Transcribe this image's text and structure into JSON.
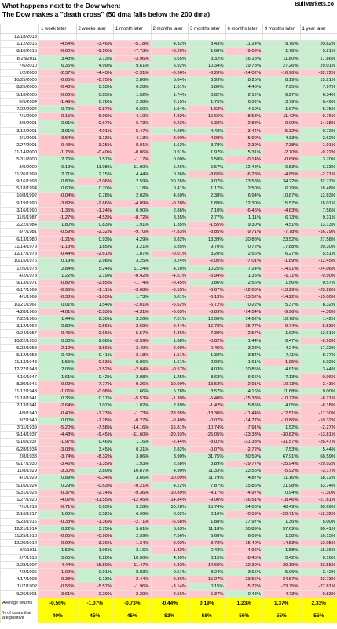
{
  "header": {
    "title_line1": "What happens next to the Dow when:",
    "title_line2": "The Dow makes a \"death cross\" (50 dma falls below the 200 dma)",
    "brand": "BullMarkets.co"
  },
  "chart_data": {
    "type": "table",
    "columns": [
      "",
      "1 week later",
      "2 weeks later",
      "1 month later",
      "2 months later",
      "3 months later",
      "6 months later",
      "9 months later",
      "1 year later"
    ],
    "rows": [
      [
        "12/18/2018",
        "",
        "",
        "",
        "",
        "",
        "",
        "",
        ""
      ],
      [
        "1/12/2016",
        "-4.54%",
        "-3.46%",
        "-5.18%",
        "4.32%",
        "8.43%",
        "11.24%",
        "9.76%",
        "20.82%"
      ],
      [
        "8/10/2015",
        "-0.60%",
        "-9.90%",
        "-7.73%",
        "-3.20%",
        "1.68%",
        "-9.09%",
        "1.78%",
        "5.21%"
      ],
      [
        "8/23/2011",
        "3.43%",
        "2.13%",
        "-3.96%",
        "5.65%",
        "3.32%",
        "16.18%",
        "11.80%",
        "17.86%"
      ],
      [
        "7/6/2010",
        "6.36%",
        "4.99%",
        "9.61%",
        "5.92%",
        "10.34%",
        "19.78%",
        "27.26%",
        "29.01%"
      ],
      [
        "1/2/2008",
        "-2.37%",
        "-4.43%",
        "-2.31%",
        "-6.36%",
        "-3.20%",
        "-14.02%",
        "-16.96%",
        "-32.72%"
      ],
      [
        "10/25/2005",
        "-0.05%",
        "-0.75%",
        "2.86%",
        "5.04%",
        "6.99%",
        "8.25%",
        "8.19%",
        "15.21%"
      ],
      [
        "8/25/2005",
        "-0.48%",
        "0.53%",
        "0.28%",
        "1.61%",
        "5.80%",
        "4.45%",
        "7.95%",
        "7.97%"
      ],
      [
        "5/18/2005",
        "-0.06%",
        "0.85%",
        "1.52%",
        "1.74%",
        "0.82%",
        "2.12%",
        "6.27%",
        "6.34%"
      ],
      [
        "8/5/2004",
        "-1.49%",
        "0.78%",
        "2.98%",
        "2.15%",
        "1.75%",
        "6.32%",
        "3.79%",
        "6.49%"
      ],
      [
        "7/22/2004",
        "0.79%",
        "-0.87%",
        "0.60%",
        "1.94%",
        "-1.63%",
        "4.19%",
        "1.67%",
        "5.75%"
      ],
      [
        "7/1/2002",
        "-0.15%",
        "-6.99%",
        "-4.10%",
        "-4.82%",
        "-16.66%",
        "-8.53%",
        "-11.42%",
        "-0.76%"
      ],
      [
        "8/9/2001",
        "0.91%",
        "-0.67%",
        "-6.73%",
        "-9.23%",
        "-5.32%",
        "-2.88%",
        "-0.09%",
        "-14.38%"
      ],
      [
        "3/12/2001",
        "3.91%",
        "-4.01%",
        "-5.47%",
        "4.29%",
        "4.42%",
        "-3.44%",
        "-5.32%",
        "0.72%"
      ],
      [
        "2/1/2001",
        "-3.54%",
        "-3.13%",
        "-4.13%",
        "-3.90%",
        "-4.98%",
        "-5.90%",
        "4.33%",
        "3.62%"
      ],
      [
        "2/27/2001",
        "-0.43%",
        "-3.25%",
        "-8.01%",
        "1.63%",
        "3.78%",
        "-2.39%",
        "-7.38%",
        "-1.91%"
      ],
      [
        "11/14/2000",
        "-1.75%",
        "-0.49%",
        "-0.06%",
        "0.91%",
        "1.97%",
        "5.31%",
        "-2.70%",
        "-9.22%"
      ],
      [
        "5/31/2000",
        "2.76%",
        "1.57%",
        "-1.17%",
        "0.00%",
        "6.58%",
        "-0.14%",
        "-0.69%",
        "3.70%"
      ],
      [
        "3/9/2000",
        "6.19%",
        "11.08%",
        "11.00%",
        "5.26%",
        "6.57%",
        "12.48%",
        "6.53%",
        "6.33%"
      ],
      [
        "11/26/1999",
        "2.71%",
        "2.15%",
        "4.44%",
        "0.36%",
        "-8.65%",
        "-6.28%",
        "-4.85%",
        "-2.21%"
      ],
      [
        "9/16/1998",
        "0.80%",
        "-3.06%",
        "2.59%",
        "10.26%",
        "9.07%",
        "23.58%",
        "34.22%",
        "32.77%"
      ],
      [
        "5/18/1994",
        "0.60%",
        "0.70%",
        "1.18%",
        "0.41%",
        "1.17%",
        "2.50%",
        "6.79%",
        "18.48%"
      ],
      [
        "10/8/1992",
        "-0.04%",
        "0.78%",
        "2.02%",
        "4.60%",
        "2.38%",
        "6.94%",
        "10.87%",
        "12.83%"
      ],
      [
        "9/19/1990",
        "-3.82%",
        "-2.66%",
        "-4.09%",
        "-0.28%",
        "1.89%",
        "12.30%",
        "15.57%",
        "18.01%"
      ],
      [
        "3/16/1990",
        "-1.35%",
        "-1.24%",
        "0.90%",
        "2.86%",
        "7.10%",
        "-6.46%",
        "-4.63%",
        "7.56%"
      ],
      [
        "11/5/1987",
        "-1.27%",
        "-4.53%",
        "-8.72%",
        "3.35%",
        "2.77%",
        "1.11%",
        "6.73%",
        "9.31%"
      ],
      [
        "2/22/1984",
        "1.80%",
        "0.83%",
        "1.91%",
        "1.35%",
        "-1.55%",
        "9.30%",
        "4.51%",
        "13.13%"
      ],
      [
        "8/7/1981",
        "-0.59%",
        "-2.32%",
        "-9.70%",
        "-7.83%",
        "-8.85%",
        "-9.71%",
        "-7.78%",
        "-16.79%"
      ],
      [
        "6/13/1980",
        "-1.21%",
        "0.93%",
        "4.29%",
        "8.82%",
        "13.39%",
        "20.88%",
        "23.52%",
        "27.58%"
      ],
      [
        "11/14/1979",
        "-1.13%",
        "1.85%",
        "3.21%",
        "5.95%",
        "9.70%",
        "0.72%",
        "17.88%",
        "20.30%"
      ],
      [
        "12/17/1978",
        "-0.44%",
        "-2.61%",
        "1.87%",
        "-0.01%",
        "3.28%",
        "2.56%",
        "6.27%",
        "5.51%"
      ],
      [
        "10/15/1976",
        "0.19%",
        "2.98%",
        "3.25%",
        "0.24%",
        "-2.05%",
        "-7.01%",
        "-1.89%",
        "-12.45%"
      ],
      [
        "12/5/1973",
        "2.84%",
        "5.24%",
        "11.24%",
        "4.10%",
        "10.25%",
        "7.24%",
        "-14.91%",
        "-24.06%"
      ],
      [
        "4/2/1973",
        "1.22%",
        "2.19%",
        "-0.42%",
        "-4.51%",
        "-5.94%",
        "1.35%",
        "-9.11%",
        "-9.90%"
      ],
      [
        "9/13/1971",
        "-0.82%",
        "-2.85%",
        "-1.74%",
        "-0.45%",
        "0.86%",
        "2.56%",
        "1.56%",
        "0.57%"
      ],
      [
        "6/17/1969",
        "-0.96%",
        "-1.11%",
        "-3.68%",
        "-6.55%",
        "-6.67%",
        "-12.63%",
        "-13.29%",
        "-20.26%"
      ],
      [
        "4/1/1969",
        "-0.33%",
        "-1.03%",
        "1.73%",
        "0.01%",
        "-6.13%",
        "-13.52%",
        "-14.22%",
        "-15.00%"
      ],
      [
        "10/21/1967",
        "0.01%",
        "1.54%",
        "-2.01%",
        "-5.62%",
        "-5.72%",
        "0.22%",
        "5.37%",
        "8.32%"
      ],
      [
        "4/28/1966",
        "-4.01%",
        "-5.53%",
        "-4.31%",
        "-6.03%",
        "-8.89%",
        "-14.54%",
        "-9.96%",
        "-4.30%"
      ],
      [
        "7/22/1965",
        "1.44%",
        "2.30%",
        "3.26%",
        "7.51%",
        "10.06%",
        "14.62%",
        "10.78%",
        "1.42%"
      ],
      [
        "3/12/1962",
        "0.80%",
        "-0.56%",
        "-2.69%",
        "-9.44%",
        "-16.72%",
        "-15.77%",
        "-9.74%",
        "-5.53%"
      ],
      [
        "9/24/1957",
        "-0.45%",
        "-2.66%",
        "-5.57%",
        "-4.36%",
        "-7.30%",
        "-2.57%",
        "1.62%",
        "13.61%"
      ],
      [
        "10/22/1956",
        "0.33%",
        "2.08%",
        "-3.59%",
        "1.88%",
        "-0.82%",
        "1.44%",
        "6.47%",
        "-9.93%"
      ],
      [
        "5/22/1953",
        "-2.12%",
        "-3.56%",
        "-3.49%",
        "-2.00%",
        "-0.45%",
        "3.23%",
        "4.24%",
        "17.22%"
      ],
      [
        "5/12/1953",
        "0.49%",
        "0.41%",
        "-2.18%",
        "-1.51%",
        "1.32%",
        "3.84%",
        "7.11%",
        "8.77%"
      ],
      [
        "11/13/1948",
        "1.55%",
        "-0.63%",
        "0.86%",
        "1.61%",
        "2.93%",
        "1.61%",
        "-1.95%",
        "6.02%"
      ],
      [
        "12/27/1948",
        "2.05%",
        "-1.52%",
        "-2.04%",
        "-0.57%",
        "4.03%",
        "10.85%",
        "4.61%",
        "3.44%"
      ],
      [
        "4/16/1947",
        "1.61%",
        "0.42%",
        "2.08%",
        "1.25%",
        "8.62%",
        "6.66%",
        "7.13%",
        "-0.06%"
      ],
      [
        "8/30/1946",
        "-9.09%",
        "-7.77%",
        "-9.36%",
        "-10.99%",
        "-13.53%",
        "-2.91%",
        "-10.73%",
        "-2.43%"
      ],
      [
        "11/12/1943",
        "-1.06%",
        "-0.08%",
        "1.66%",
        "5.78%",
        "3.57%",
        "4.16%",
        "11.88%",
        "9.00%"
      ],
      [
        "11/18/1941",
        "0.36%",
        "0.17%",
        "-5.53%",
        "-1.30%",
        "-5.40%",
        "-15.38%",
        "-10.72%",
        "-8.21%"
      ],
      [
        "2/13/1941",
        "-2.64%",
        "1.07%",
        "1.82%",
        "2.89%",
        "-1.42%",
        "5.86%",
        "4.05%",
        "-8.18%"
      ],
      [
        "4/9/1940",
        "-0.40%",
        "-1.73%",
        "-1.73%",
        "-23.95%",
        "-18.30%",
        "-11.44%",
        "-12.51%",
        "-17.30%"
      ],
      [
        "3/7/1940",
        "0.00%",
        "-1.28%",
        "-0.27%",
        "-0.40%",
        "-0.07%",
        "-14.77%",
        "-10.86%",
        "-10.32%"
      ],
      [
        "3/11/1939",
        "-5.20%",
        "-7.58%",
        "-14.16%",
        "-15.81%",
        "-10.74%",
        "-7.91%",
        "1.52%",
        "-2.27%"
      ],
      [
        "9/14/1937",
        "-4.48%",
        "-9.45%",
        "-11.60%",
        "-20.93%",
        "-25.05%",
        "-23.33%",
        "-30.82%",
        "-13.81%"
      ],
      [
        "5/10/1937",
        "-1.97%",
        "0.46%",
        "1.16%",
        "-2.44%",
        "-8.02%",
        "-31.33%",
        "-31.57%",
        "-26.47%"
      ],
      [
        "6/28/1934",
        "-3.03%",
        "3.45%",
        "0.31%",
        "2.82%",
        "-0.07%",
        "-2.72%",
        "7.53%",
        "5.44%"
      ],
      [
        "2/8/1933",
        "-3.74%",
        "-8.32%",
        "3.06%",
        "3.90%",
        "31.75%",
        "50.59%",
        "67.91%",
        "68.59%"
      ],
      [
        "6/17/1930",
        "-3.46%",
        "-1.35%",
        "1.93%",
        "2.58%",
        "3.89%",
        "-19.77%",
        "-25.94%",
        "-29.92%"
      ],
      [
        "11/8/1929",
        "-3.30%",
        "3.89%",
        "10.87%",
        "4.90%",
        "11.33%",
        "23.55%",
        "-5.92%",
        "-3.17%"
      ],
      [
        "4/1/1929",
        "0.89%",
        "-0.34%",
        "3.66%",
        "-10.09%",
        "11.79%",
        "4.87%",
        "11.16%",
        "18.72%"
      ],
      [
        "5/16/1924",
        "0.29%",
        "-0.63%",
        "-0.21%",
        "4.22%",
        "7.87%",
        "15.85%",
        "21.98%",
        "33.74%"
      ],
      [
        "5/31/1923",
        "-0.37%",
        "-2.14%",
        "-9.36%",
        "-10.89%",
        "-4.17%",
        "-4.97%",
        "0.94%",
        "-7.30%"
      ],
      [
        "1/27/1920",
        "-4.02%",
        "-11.55%",
        "-12.45%",
        "-14.84%",
        "-9.00%",
        "-16.51%",
        "-18.46%",
        "-27.81%"
      ],
      [
        "7/1/1919",
        "-0.71%",
        "0.63%",
        "5.28%",
        "10.28%",
        "15.74%",
        "34.05%",
        "48.49%",
        "30.69%"
      ],
      [
        "2/16/1917",
        "1.68%",
        "3.52%",
        "6.96%",
        "0.02%",
        "0.16%",
        "-0.59%",
        "-20.71%",
        "-12.32%"
      ],
      [
        "5/23/1916",
        "-0.33%",
        "-1.36%",
        "-2.71%",
        "-6.58%",
        "1.88%",
        "17.97%",
        "1.36%",
        "5.00%"
      ],
      [
        "12/21/1914",
        "0.22%",
        "3.75%",
        "5.61%",
        "6.63%",
        "11.18%",
        "30.89%",
        "57.69%",
        "80.41%"
      ],
      [
        "11/25/1913",
        "-0.05%",
        "-0.90%",
        "2.59%",
        "7.56%",
        "6.68%",
        "6.09%",
        "1.58%",
        "16.15%"
      ],
      [
        "12/20/1912",
        "-0.92%",
        "-3.36%",
        "-1.34%",
        "-9.02%",
        "-8.72%",
        "-15.40%",
        "-14.53%",
        "-12.05%"
      ],
      [
        "3/6/1911",
        "1.59%",
        "1.96%",
        "3.16%",
        "-1.32%",
        "0.43%",
        "-4.96%",
        "1.58%",
        "15.36%"
      ],
      [
        "2/7/1910",
        "5.05%",
        "6.28%",
        "10.50%",
        "4.90%",
        "3.15%",
        "-8.45%",
        "0.42%",
        "0.16%"
      ],
      [
        "2/28/1907",
        "-4.44%",
        "-15.80%",
        "-11.47%",
        "-6.82%",
        "-14.60%",
        "-22.39%",
        "-39.19%",
        "-33.55%"
      ],
      [
        "7/2/1906",
        "-1.00%",
        "0.91%",
        "8.83%",
        "9.51%",
        "8.24%",
        "3.65%",
        "5.96%",
        "3.42%"
      ],
      [
        "4/17/1903",
        "-0.33%",
        "0.13%",
        "-2.44%",
        "-9.86%",
        "-15.27%",
        "-33.56%",
        "-24.87%",
        "-22.73%"
      ],
      [
        "11/7/1902",
        "-0.56%",
        "-5.57%",
        "-1.96%",
        "-3.14%",
        "0.15%",
        "-5.72%",
        "-23.75%",
        "-27.81%"
      ],
      [
        "9/26/1901",
        "-3.61%",
        "-2.29%",
        "-2.39%",
        "-2.56%",
        "-5.37%",
        "0.43%",
        "-4.73%",
        "-0.83%"
      ]
    ],
    "summary": {
      "avg_label": "Average returns",
      "avg": [
        "-0.50%",
        "-1.07%",
        "-0.73%",
        "-0.44%",
        "0.19%",
        "1.23%",
        "1.37%",
        "2.33%"
      ],
      "pos_label": "% of cases that are positive",
      "pos": [
        "40%",
        "45%",
        "45%",
        "53%",
        "58%",
        "56%",
        "55%",
        "55%"
      ]
    },
    "colors": {
      "positive": "#c6efce",
      "negative": "#ffc7ce",
      "summary": "#ffff00"
    }
  }
}
